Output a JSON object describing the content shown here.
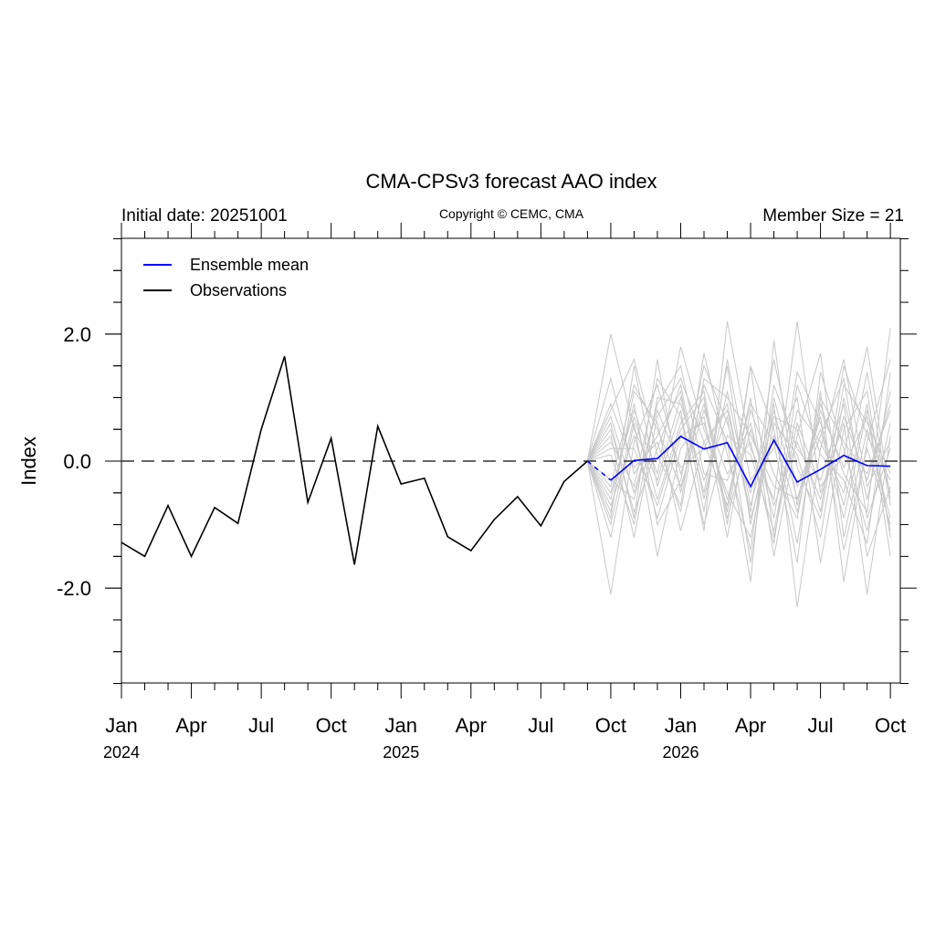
{
  "chart_data": {
    "type": "line",
    "title": "CMA-CPSv3 forecast AAO index",
    "subtitle_left": "Initial date: 20251001",
    "subtitle_center": "Copyright © CEMC, CMA",
    "subtitle_right": "Member Size = 21",
    "ylabel": "Index",
    "xlabel": "",
    "ylim": [
      -3.5,
      3.5
    ],
    "yticks": [
      2.0,
      0.0,
      -2.0
    ],
    "ytick_labels": [
      "2.0",
      "0.0",
      "-2.0"
    ],
    "xrange_months": [
      "2024-01",
      "2026-10"
    ],
    "xtick_labels": [
      "Jan",
      "Apr",
      "Jul",
      "Oct",
      "Jan",
      "Apr",
      "Jul",
      "Oct",
      "Jan",
      "Apr",
      "Jul",
      "Oct"
    ],
    "year_labels": [
      "2024",
      "2025",
      "2026"
    ],
    "zero_line": "dashed",
    "legend_position": "top-left",
    "legend": [
      "Ensemble mean",
      "Observations"
    ],
    "colors": {
      "mean": "#0000ff",
      "obs": "#000000",
      "members": "#c8c8c8",
      "zero": "#333333"
    },
    "observations": {
      "name": "Observations",
      "start": "2024-01",
      "values": [
        -1.28,
        -1.5,
        -0.7,
        -1.5,
        -0.73,
        -0.98,
        0.5,
        1.65,
        -0.65,
        0.36,
        -1.63,
        0.55,
        -0.36,
        -0.27,
        -1.19,
        -1.41,
        -0.92,
        -0.56,
        -1.02,
        -0.32,
        0.0
      ]
    },
    "ensemble_mean": {
      "name": "Ensemble mean",
      "start": "2025-09",
      "values": [
        0.0,
        -0.3,
        0.01,
        0.04,
        0.39,
        0.19,
        0.29,
        -0.4,
        0.33,
        -0.33,
        -0.13,
        0.09,
        -0.07,
        -0.08
      ]
    },
    "members": {
      "start": "2025-09",
      "series": [
        [
          0,
          2.0,
          0.5,
          -0.3,
          1.0,
          -0.5,
          1.5,
          -1.0,
          0.8,
          -0.6,
          0.4,
          1.3,
          -0.9,
          0.2
        ],
        [
          0,
          -2.1,
          0.3,
          1.2,
          -0.2,
          0.9,
          -0.8,
          1.5,
          -1.2,
          0.6,
          -0.4,
          0.1,
          1.8,
          -0.6
        ],
        [
          0,
          0.6,
          -0.9,
          1.6,
          -0.5,
          1.2,
          0.3,
          -1.9,
          1.9,
          -0.7,
          0.9,
          -0.2,
          -0.8,
          2.1
        ],
        [
          0,
          -0.9,
          1.5,
          -0.4,
          0.8,
          -1.1,
          2.2,
          0.2,
          -0.6,
          2.2,
          -0.5,
          0.6,
          -2.1,
          0.4
        ],
        [
          0,
          0.4,
          -1.2,
          0.7,
          1.3,
          0.3,
          -0.7,
          1.0,
          -1.5,
          0.4,
          1.7,
          -1.2,
          0.5,
          -0.9
        ],
        [
          0,
          -0.6,
          0.9,
          -1.0,
          -0.3,
          1.5,
          0.6,
          -0.5,
          0.9,
          -2.3,
          0.2,
          1.6,
          -0.4,
          0.3
        ],
        [
          0,
          1.3,
          -0.2,
          0.4,
          1.1,
          -0.8,
          1.6,
          -0.3,
          0.2,
          1.0,
          -1.6,
          0.5,
          1.1,
          -1.2
        ],
        [
          0,
          -1.2,
          0.6,
          -1.5,
          0.2,
          0.7,
          -1.2,
          0.8,
          -0.2,
          -0.9,
          1.1,
          -1.9,
          0.3,
          1.6
        ],
        [
          0,
          0.8,
          1.6,
          0.1,
          -0.7,
          1.7,
          0.1,
          -1.4,
          1.2,
          0.2,
          -0.3,
          0.9,
          -1.5,
          -0.4
        ],
        [
          0,
          -0.3,
          -0.6,
          0.9,
          1.5,
          -0.2,
          -0.3,
          0.6,
          -0.9,
          1.4,
          0.6,
          -0.7,
          0.9,
          -1.5
        ],
        [
          0,
          0.2,
          0.2,
          -0.7,
          0.5,
          1.0,
          -1.0,
          1.5,
          0.5,
          -1.3,
          1.0,
          0.3,
          -0.2,
          0.8
        ],
        [
          0,
          -0.8,
          1.1,
          0.6,
          -1.1,
          0.3,
          0.8,
          -0.8,
          1.6,
          -0.1,
          -0.9,
          1.2,
          0.6,
          -0.2
        ],
        [
          0,
          0.3,
          -0.4,
          1.3,
          0.7,
          -1.0,
          0.4,
          0.1,
          -1.1,
          0.8,
          0.3,
          -0.5,
          1.4,
          -0.7
        ],
        [
          0,
          -0.5,
          0.8,
          -0.2,
          1.8,
          0.5,
          -0.5,
          -1.2,
          0.6,
          0.1,
          -1.2,
          1.0,
          -0.6,
          1.1
        ],
        [
          0,
          0.9,
          -0.1,
          0.3,
          -0.8,
          1.3,
          1.0,
          0.4,
          -0.4,
          -0.6,
          0.7,
          -1.4,
          0.2,
          -1.0
        ],
        [
          0,
          -0.7,
          0.4,
          -0.9,
          0.4,
          0.6,
          -0.6,
          0.9,
          0.3,
          -1.6,
          1.4,
          0.2,
          -1.1,
          0.6
        ],
        [
          0,
          0.5,
          -0.8,
          0.2,
          1.2,
          -0.6,
          1.1,
          -0.7,
          0.7,
          0.5,
          -0.8,
          1.5,
          0.4,
          -0.3
        ],
        [
          0,
          -0.4,
          1.2,
          0.5,
          -0.4,
          0.8,
          -0.2,
          0.3,
          -1.3,
          1.2,
          0.1,
          -0.3,
          -1.3,
          1.4
        ],
        [
          0,
          0.1,
          -1.0,
          1.0,
          0.9,
          -0.3,
          0.7,
          -1.6,
          1.0,
          -0.4,
          0.5,
          -0.9,
          0.8,
          -0.5
        ],
        [
          0,
          -1.0,
          0.7,
          -0.6,
          0.6,
          1.1,
          -0.9,
          0.5,
          -0.7,
          0.3,
          -0.6,
          0.7,
          -0.3,
          0.9
        ],
        [
          0,
          0.7,
          -0.5,
          0.8,
          -0.1,
          0.2,
          0.9,
          -0.9,
          0.4,
          -0.8,
          0.8,
          -0.1,
          0.7,
          -1.1
        ]
      ]
    }
  }
}
